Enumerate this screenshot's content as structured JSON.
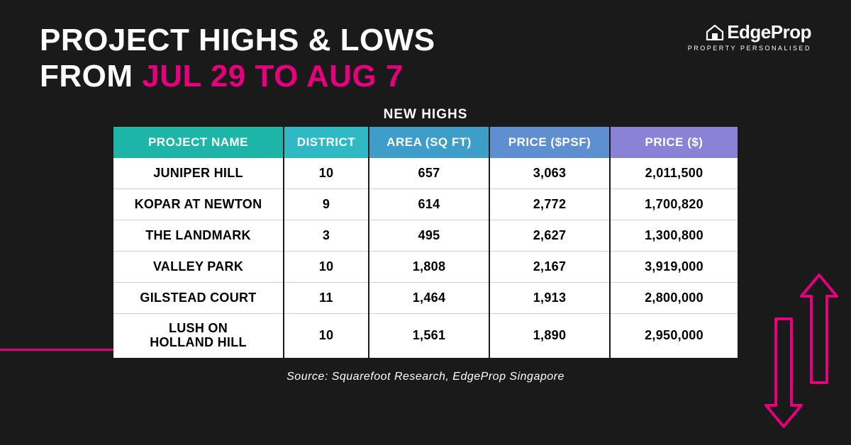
{
  "title": {
    "line1": "PROJECT HIGHS & LOWS",
    "line2_prefix": "FROM ",
    "line2_accent": "JUL 29 TO AUG 7"
  },
  "logo": {
    "brand": "EdgeProp",
    "tagline": "PROPERTY PERSONALISED"
  },
  "table": {
    "title": "NEW HIGHS",
    "columns": [
      {
        "label": "PROJECT NAME",
        "bg": "#1db5a8"
      },
      {
        "label": "DISTRICT",
        "bg": "#2fb9c4"
      },
      {
        "label": "AREA (SQ FT)",
        "bg": "#3f9dc9"
      },
      {
        "label": "PRICE ($PSF)",
        "bg": "#5e8fd0"
      },
      {
        "label": "PRICE ($)",
        "bg": "#8a82d6"
      }
    ],
    "rows": [
      {
        "name": "JUNIPER HILL",
        "district": "10",
        "area": "657",
        "psf": "3,063",
        "price": "2,011,500"
      },
      {
        "name": "KOPAR AT NEWTON",
        "district": "9",
        "area": "614",
        "psf": "2,772",
        "price": "1,700,820"
      },
      {
        "name": "THE LANDMARK",
        "district": "3",
        "area": "495",
        "psf": "2,627",
        "price": "1,300,800"
      },
      {
        "name": "VALLEY PARK",
        "district": "10",
        "area": "1,808",
        "psf": "2,167",
        "price": "3,919,000"
      },
      {
        "name": "GILSTEAD COURT",
        "district": "11",
        "area": "1,464",
        "psf": "1,913",
        "price": "2,800,000"
      },
      {
        "name": "LUSH ON\nHOLLAND HILL",
        "district": "10",
        "area": "1,561",
        "psf": "1,890",
        "price": "2,950,000"
      }
    ]
  },
  "source": "Source: Squarefoot Research, EdgeProp Singapore",
  "accent_color": "#e6007e",
  "background_color": "#1a1a1a"
}
